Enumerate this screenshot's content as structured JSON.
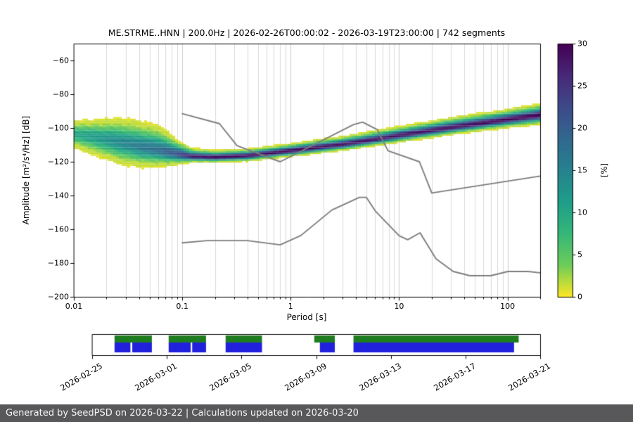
{
  "chart_data": {
    "type": "heatmap",
    "title": "ME.STRME..HNN | 200.0Hz | 2026-02-26T00:00:02 - 2026-03-19T23:00:00 | 742 segments",
    "xlabel": "Period [s]",
    "ylabel": "Amplitude [m²/s⁴/Hz] [dB]",
    "xscale": "log",
    "xlim": [
      0.01,
      200
    ],
    "ylim": [
      -200,
      -50
    ],
    "grid": {
      "vertical_minor": true,
      "major_color": "#cccccc",
      "minor_color": "#dadada"
    },
    "xticks": [
      {
        "value": 0.01,
        "label": "0.01"
      },
      {
        "value": 0.1,
        "label": "0.1"
      },
      {
        "value": 1,
        "label": "1"
      },
      {
        "value": 10,
        "label": "10"
      },
      {
        "value": 100,
        "label": "100"
      }
    ],
    "yticks": [
      {
        "value": -60,
        "label": "−60"
      },
      {
        "value": -80,
        "label": "−80"
      },
      {
        "value": -100,
        "label": "−100"
      },
      {
        "value": -120,
        "label": "−120"
      },
      {
        "value": -140,
        "label": "−140"
      },
      {
        "value": -160,
        "label": "−160"
      },
      {
        "value": -180,
        "label": "−180"
      },
      {
        "value": -200,
        "label": "−200"
      }
    ],
    "colorbar": {
      "label": "[%]",
      "min": 0,
      "max": 30,
      "ticks": [
        {
          "value": 0,
          "label": "0"
        },
        {
          "value": 5,
          "label": "5"
        },
        {
          "value": 10,
          "label": "10"
        },
        {
          "value": 15,
          "label": "15"
        },
        {
          "value": 20,
          "label": "20"
        },
        {
          "value": 25,
          "label": "25"
        },
        {
          "value": 30,
          "label": "30"
        }
      ]
    },
    "colormap": {
      "name": "viridis reversed (0% = yellow, 30% = dark purple)",
      "stops": [
        {
          "t": 0.0,
          "hex": "#440154"
        },
        {
          "t": 0.125,
          "hex": "#482878"
        },
        {
          "t": 0.25,
          "hex": "#3e4a89"
        },
        {
          "t": 0.375,
          "hex": "#31688e"
        },
        {
          "t": 0.5,
          "hex": "#26828e"
        },
        {
          "t": 0.625,
          "hex": "#1f9e89"
        },
        {
          "t": 0.75,
          "hex": "#35b779"
        },
        {
          "t": 0.875,
          "hex": "#6dcd59"
        },
        {
          "t": 1.0,
          "hex": "#fde725"
        }
      ]
    },
    "ppsd_distribution": {
      "note": "PPSD probability density: per period, center dB of the distribution, asymmetric spread (dB) and peak probability (%)",
      "points": [
        {
          "period": 0.01,
          "center_db": -103.5,
          "sigma_up": 3.2,
          "sigma_down": 3.4,
          "peak_percent": 10
        },
        {
          "period": 0.016,
          "center_db": -105.5,
          "sigma_up": 4.2,
          "sigma_down": 4.4,
          "peak_percent": 12
        },
        {
          "period": 0.025,
          "center_db": -108.0,
          "sigma_up": 5.5,
          "sigma_down": 5.2,
          "peak_percent": 14
        },
        {
          "period": 0.04,
          "center_db": -111.0,
          "sigma_up": 6.0,
          "sigma_down": 4.8,
          "peak_percent": 16
        },
        {
          "period": 0.063,
          "center_db": -113.5,
          "sigma_up": 5.5,
          "sigma_down": 3.6,
          "peak_percent": 18
        },
        {
          "period": 0.09,
          "center_db": -115.5,
          "sigma_up": 3.2,
          "sigma_down": 2.4,
          "peak_percent": 22
        },
        {
          "period": 0.12,
          "center_db": -116.8,
          "sigma_up": 1.8,
          "sigma_down": 1.4,
          "peak_percent": 28
        },
        {
          "period": 0.2,
          "center_db": -117.3,
          "sigma_up": 1.5,
          "sigma_down": 1.2,
          "peak_percent": 30
        },
        {
          "period": 0.4,
          "center_db": -116.5,
          "sigma_up": 1.5,
          "sigma_down": 1.2,
          "peak_percent": 30
        },
        {
          "period": 1.0,
          "center_db": -113.5,
          "sigma_up": 1.6,
          "sigma_down": 1.3,
          "peak_percent": 30
        },
        {
          "period": 3.2,
          "center_db": -109.5,
          "sigma_up": 1.8,
          "sigma_down": 1.4,
          "peak_percent": 29
        },
        {
          "period": 10.0,
          "center_db": -104.5,
          "sigma_up": 2.0,
          "sigma_down": 1.5,
          "peak_percent": 29
        },
        {
          "period": 32.0,
          "center_db": -99.5,
          "sigma_up": 2.2,
          "sigma_down": 1.6,
          "peak_percent": 29
        },
        {
          "period": 100.0,
          "center_db": -95.0,
          "sigma_up": 2.2,
          "sigma_down": 1.8,
          "peak_percent": 30
        },
        {
          "period": 200.0,
          "center_db": -92.5,
          "sigma_up": 2.5,
          "sigma_down": 2.0,
          "peak_percent": 30
        }
      ]
    },
    "noise_models": {
      "color": "#7d7d7d",
      "nhnm": [
        [
          0.1,
          -91.5
        ],
        [
          0.22,
          -97.4
        ],
        [
          0.32,
          -110.5
        ],
        [
          0.8,
          -120.0
        ],
        [
          3.8,
          -98.0
        ],
        [
          4.6,
          -96.5
        ],
        [
          6.3,
          -101.0
        ],
        [
          7.9,
          -113.5
        ],
        [
          15.4,
          -120.0
        ],
        [
          20,
          -138.5
        ],
        [
          200,
          -128.5
        ]
      ],
      "nlnm": [
        [
          0.1,
          -168.0
        ],
        [
          0.17,
          -166.7
        ],
        [
          0.4,
          -166.7
        ],
        [
          0.8,
          -169.2
        ],
        [
          1.24,
          -163.7
        ],
        [
          2.4,
          -148.6
        ],
        [
          4.3,
          -141.1
        ],
        [
          5.0,
          -141.1
        ],
        [
          6.0,
          -149.0
        ],
        [
          10.0,
          -163.8
        ],
        [
          12.0,
          -166.2
        ],
        [
          15.6,
          -162.1
        ],
        [
          21.9,
          -177.5
        ],
        [
          31.6,
          -185.0
        ],
        [
          45.0,
          -187.5
        ],
        [
          70.0,
          -187.5
        ],
        [
          101.0,
          -185.0
        ],
        [
          154.0,
          -185.0
        ],
        [
          200.0,
          -185.8
        ]
      ]
    }
  },
  "timeline": {
    "span_days": 24,
    "tick_days": [
      0,
      4,
      8,
      12,
      16,
      20,
      24
    ],
    "tick_labels": [
      "2026-02-25",
      "2026-03-01",
      "2026-03-05",
      "2026-03-09",
      "2026-03-13",
      "2026-03-17",
      "2026-03-21"
    ],
    "colors": {
      "availability": "#1e7d1e",
      "psd": "#2121dd"
    },
    "availability_segments_days": [
      [
        1.2,
        3.2
      ],
      [
        4.1,
        6.1
      ],
      [
        7.15,
        9.1
      ],
      [
        11.9,
        13.0
      ],
      [
        14.0,
        22.85
      ]
    ],
    "psd_segments_days": [
      [
        1.2,
        2.05
      ],
      [
        2.15,
        3.2
      ],
      [
        4.1,
        5.28
      ],
      [
        5.36,
        6.1
      ],
      [
        7.15,
        9.1
      ],
      [
        12.2,
        13.0
      ],
      [
        14.0,
        22.6
      ]
    ]
  },
  "footer": {
    "text": "Generated by SeedPSD on 2026-03-22 | Calculations updated on 2026-03-20",
    "background": "#58585b",
    "color": "#f5f5f5"
  }
}
